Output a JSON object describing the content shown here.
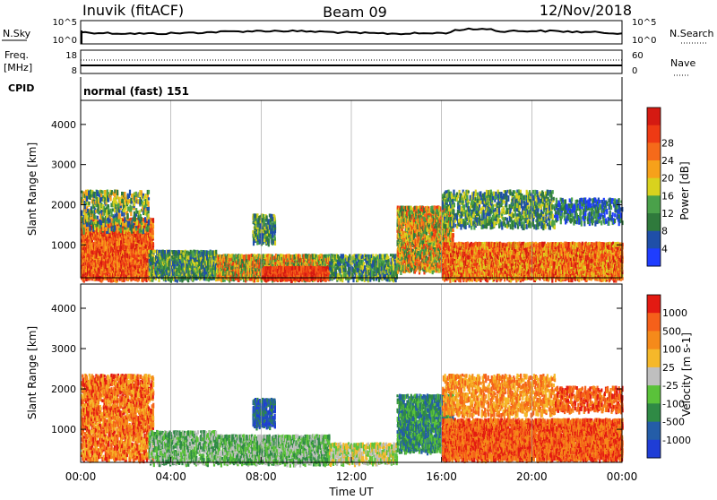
{
  "header": {
    "station": "Inuvik (fitACF)",
    "beam": "Beam 09",
    "date": "12/Nov/2018"
  },
  "noise_panel": {
    "left_label": "N.Sky",
    "right_label": "N.Search",
    "left_ticks": [
      "10^5",
      "10^0"
    ],
    "right_ticks": [
      "10^5",
      "10^0"
    ]
  },
  "freq_panel": {
    "left_label_1": "Freq.",
    "left_label_2": "[MHz]",
    "right_label": "Nave",
    "left_ticks": [
      "18",
      "8"
    ],
    "right_ticks": [
      "60",
      "0"
    ]
  },
  "cpid": {
    "label": "CPID",
    "value": "normal (fast) 151"
  },
  "chart_data": [
    {
      "type": "heatmap",
      "ylabel": "Slant Range [km]",
      "xlabel": "Time UT",
      "ylim": [
        180,
        4600
      ],
      "yticks": [
        "1000",
        "2000",
        "3000",
        "4000"
      ],
      "xticks": [
        "00:00",
        "04:00",
        "08:00",
        "12:00",
        "16:00",
        "20:00",
        "00:00"
      ],
      "colorbar": {
        "label": "Power [dB]",
        "ticks": [
          "4",
          "8",
          "12",
          "16",
          "20",
          "24",
          "28"
        ],
        "colors": [
          "#1f3dff",
          "#1f4fa8",
          "#2f7a3c",
          "#4aa14a",
          "#d9d21e",
          "#f7a11a",
          "#f56a1a",
          "#ee3a14",
          "#d51a12"
        ]
      }
    },
    {
      "type": "heatmap",
      "ylabel": "Slant Range [km]",
      "xlabel": "Time UT",
      "ylim": [
        180,
        4600
      ],
      "yticks": [
        "1000",
        "2000",
        "3000",
        "4000"
      ],
      "xticks": [
        "00:00",
        "04:00",
        "08:00",
        "12:00",
        "16:00",
        "20:00",
        "00:00"
      ],
      "colorbar": {
        "label": "Velocity [m s-1]",
        "ticks": [
          "1000",
          "500",
          "100",
          "25",
          "-25",
          "-100",
          "-500",
          "-1000"
        ],
        "colors": [
          "#1f3dd6",
          "#245da8",
          "#2f8a45",
          "#5ac23a",
          "#bfbfbf",
          "#f5b82a",
          "#f58a1a",
          "#f5601a",
          "#e31a12"
        ]
      }
    }
  ],
  "xaxis": {
    "label": "Time UT",
    "ticks": [
      "00:00",
      "04:00",
      "08:00",
      "12:00",
      "16:00",
      "20:00",
      "00:00"
    ]
  },
  "colors": {
    "grid": "#9a9a9a",
    "line": "#000000"
  }
}
